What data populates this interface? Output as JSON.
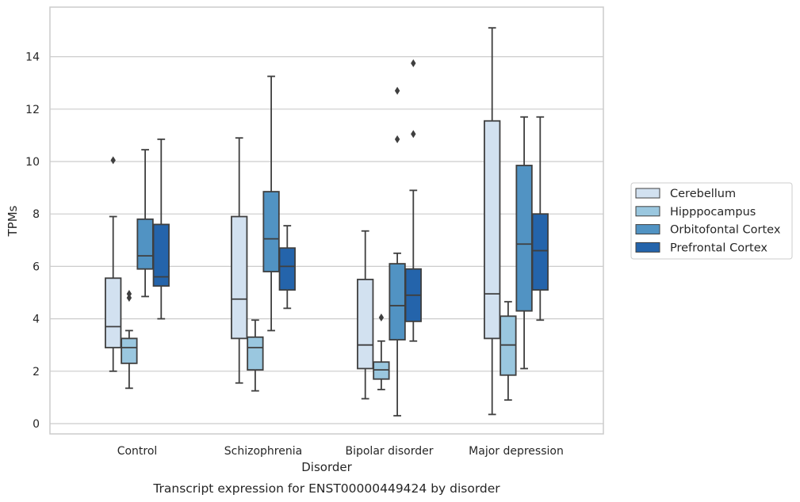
{
  "chart_data": {
    "type": "boxplot",
    "caption": "Transcript expression for ENST00000449424 by disorder",
    "xlabel": "Disorder",
    "ylabel": "TPMs",
    "ylim": [
      -0.4,
      15.8
    ],
    "yticks": [
      0,
      2,
      4,
      6,
      8,
      10,
      12,
      14
    ],
    "grid": "horizontal",
    "legend_position": "right",
    "categories": [
      "Control",
      "Schizophrenia",
      "Bipolar disorder",
      "Major depression"
    ],
    "series": [
      {
        "name": "Cerebellum",
        "color": "#d2e1f0",
        "boxes": [
          {
            "whisker_low": 2.0,
            "q1": 2.9,
            "median": 3.7,
            "q3": 5.55,
            "whisker_high": 7.9,
            "outliers": [
              10.05
            ]
          },
          {
            "whisker_low": 1.55,
            "q1": 3.25,
            "median": 4.75,
            "q3": 7.9,
            "whisker_high": 10.9,
            "outliers": []
          },
          {
            "whisker_low": 0.95,
            "q1": 2.1,
            "median": 3.0,
            "q3": 5.5,
            "whisker_high": 7.35,
            "outliers": []
          },
          {
            "whisker_low": 0.35,
            "q1": 3.25,
            "median": 4.95,
            "q3": 11.55,
            "whisker_high": 15.1,
            "outliers": []
          }
        ]
      },
      {
        "name": "Hipppocampus",
        "color": "#9ac7df",
        "boxes": [
          {
            "whisker_low": 1.35,
            "q1": 2.3,
            "median": 2.9,
            "q3": 3.25,
            "whisker_high": 3.55,
            "outliers": [
              4.8,
              4.95
            ]
          },
          {
            "whisker_low": 1.25,
            "q1": 2.05,
            "median": 2.9,
            "q3": 3.3,
            "whisker_high": 3.95,
            "outliers": []
          },
          {
            "whisker_low": 1.3,
            "q1": 1.7,
            "median": 2.05,
            "q3": 2.35,
            "whisker_high": 3.15,
            "outliers": [
              4.05
            ]
          },
          {
            "whisker_low": 0.9,
            "q1": 1.85,
            "median": 3.0,
            "q3": 4.1,
            "whisker_high": 4.65,
            "outliers": []
          }
        ]
      },
      {
        "name": "Orbitofontal Cortex",
        "color": "#5193c3",
        "boxes": [
          {
            "whisker_low": 4.85,
            "q1": 5.9,
            "median": 6.4,
            "q3": 7.8,
            "whisker_high": 10.45,
            "outliers": []
          },
          {
            "whisker_low": 3.55,
            "q1": 5.8,
            "median": 7.05,
            "q3": 8.85,
            "whisker_high": 13.25,
            "outliers": []
          },
          {
            "whisker_low": 0.3,
            "q1": 3.2,
            "median": 4.5,
            "q3": 6.1,
            "whisker_high": 6.5,
            "outliers": [
              10.85,
              12.7
            ]
          },
          {
            "whisker_low": 2.1,
            "q1": 4.3,
            "median": 6.85,
            "q3": 9.85,
            "whisker_high": 11.7,
            "outliers": []
          }
        ]
      },
      {
        "name": "Prefrontal Cortex",
        "color": "#2464ab",
        "boxes": [
          {
            "whisker_low": 4.0,
            "q1": 5.25,
            "median": 5.6,
            "q3": 7.6,
            "whisker_high": 10.85,
            "outliers": []
          },
          {
            "whisker_low": 4.4,
            "q1": 5.1,
            "median": 6.0,
            "q3": 6.7,
            "whisker_high": 7.55,
            "outliers": []
          },
          {
            "whisker_low": 3.15,
            "q1": 3.9,
            "median": 4.9,
            "q3": 5.9,
            "whisker_high": 8.9,
            "outliers": [
              11.05,
              13.75
            ]
          },
          {
            "whisker_low": 3.95,
            "q1": 5.1,
            "median": 6.6,
            "q3": 8.0,
            "whisker_high": 11.7,
            "outliers": []
          }
        ]
      }
    ]
  }
}
